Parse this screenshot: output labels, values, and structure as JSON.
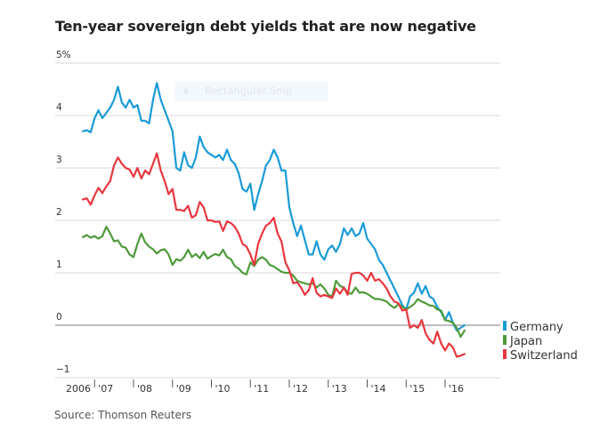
{
  "chart_data": {
    "type": "line",
    "title": "Ten-year sovereign debt yields that are now negative",
    "source": "Source: Thomson Reuters",
    "xlabel": "",
    "ylabel": "",
    "ylim": [
      -1,
      5
    ],
    "xlim": [
      2006.0,
      2016.65
    ],
    "grid": true,
    "legend_position": "right-end",
    "y_ticks": [
      {
        "value": 5,
        "label": "5%"
      },
      {
        "value": 4,
        "label": "4"
      },
      {
        "value": 3,
        "label": "3"
      },
      {
        "value": 2,
        "label": "2"
      },
      {
        "value": 1,
        "label": "1"
      },
      {
        "value": 0,
        "label": "0"
      },
      {
        "value": -1,
        "label": "−1"
      }
    ],
    "x_ticks": [
      {
        "value": 2006.3,
        "label": "2006",
        "tick": false
      },
      {
        "value": 2007.0,
        "label": "'07",
        "tick": true
      },
      {
        "value": 2008.0,
        "label": "'08",
        "tick": true
      },
      {
        "value": 2009.0,
        "label": "'09",
        "tick": true
      },
      {
        "value": 2010.0,
        "label": "'10",
        "tick": true
      },
      {
        "value": 2011.0,
        "label": "'11",
        "tick": true
      },
      {
        "value": 2012.0,
        "label": "'12",
        "tick": true
      },
      {
        "value": 2013.0,
        "label": "'13",
        "tick": true
      },
      {
        "value": 2014.0,
        "label": "'14",
        "tick": true
      },
      {
        "value": 2015.0,
        "label": "'15",
        "tick": true
      },
      {
        "value": 2016.0,
        "label": "'16",
        "tick": true
      }
    ],
    "series": [
      {
        "name": "Germany",
        "color": "#1a9bd7",
        "x": [
          2006.7,
          2006.8,
          2006.9,
          2007.0,
          2007.1,
          2007.2,
          2007.3,
          2007.4,
          2007.5,
          2007.6,
          2007.7,
          2007.8,
          2007.9,
          2008.0,
          2008.1,
          2008.2,
          2008.3,
          2008.4,
          2008.5,
          2008.6,
          2008.7,
          2008.8,
          2008.9,
          2009.0,
          2009.1,
          2009.2,
          2009.3,
          2009.4,
          2009.5,
          2009.6,
          2009.7,
          2009.8,
          2009.9,
          2010.0,
          2010.1,
          2010.2,
          2010.3,
          2010.4,
          2010.5,
          2010.6,
          2010.7,
          2010.8,
          2010.9,
          2011.0,
          2011.1,
          2011.2,
          2011.3,
          2011.4,
          2011.5,
          2011.6,
          2011.7,
          2011.8,
          2011.9,
          2012.0,
          2012.1,
          2012.2,
          2012.3,
          2012.4,
          2012.5,
          2012.6,
          2012.7,
          2012.8,
          2012.9,
          2013.0,
          2013.1,
          2013.2,
          2013.3,
          2013.4,
          2013.5,
          2013.6,
          2013.7,
          2013.8,
          2013.9,
          2014.0,
          2014.1,
          2014.2,
          2014.3,
          2014.4,
          2014.5,
          2014.6,
          2014.7,
          2014.8,
          2014.9,
          2015.0,
          2015.1,
          2015.2,
          2015.3,
          2015.4,
          2015.5,
          2015.6,
          2015.7,
          2015.8,
          2015.9,
          2016.0,
          2016.1,
          2016.2,
          2016.3,
          2016.4,
          2016.5
        ],
        "values": [
          3.7,
          3.72,
          3.68,
          3.95,
          4.1,
          3.95,
          4.05,
          4.15,
          4.3,
          4.55,
          4.25,
          4.15,
          4.3,
          4.15,
          4.2,
          3.9,
          3.9,
          3.85,
          4.3,
          4.62,
          4.3,
          4.1,
          3.9,
          3.7,
          3.0,
          2.95,
          3.3,
          3.05,
          3.0,
          3.2,
          3.6,
          3.4,
          3.3,
          3.25,
          3.2,
          3.25,
          3.15,
          3.35,
          3.15,
          3.08,
          2.9,
          2.6,
          2.55,
          2.7,
          2.2,
          2.5,
          2.75,
          3.05,
          3.15,
          3.35,
          3.2,
          2.95,
          2.95,
          2.25,
          1.95,
          1.7,
          1.9,
          1.62,
          1.35,
          1.35,
          1.6,
          1.35,
          1.25,
          1.45,
          1.52,
          1.4,
          1.55,
          1.85,
          1.72,
          1.85,
          1.7,
          1.75,
          1.95,
          1.65,
          1.55,
          1.45,
          1.25,
          1.15,
          1.0,
          0.85,
          0.7,
          0.55,
          0.38,
          0.3,
          0.55,
          0.62,
          0.8,
          0.6,
          0.75,
          0.55,
          0.5,
          0.35,
          0.25,
          0.1,
          0.25,
          0.05,
          -0.1,
          -0.05,
          0.0
        ]
      },
      {
        "name": "Japan",
        "color": "#4e9a3a",
        "x": [
          2006.7,
          2006.8,
          2006.9,
          2007.0,
          2007.1,
          2007.2,
          2007.3,
          2007.4,
          2007.5,
          2007.6,
          2007.7,
          2007.8,
          2007.9,
          2008.0,
          2008.1,
          2008.2,
          2008.3,
          2008.4,
          2008.5,
          2008.6,
          2008.7,
          2008.8,
          2008.9,
          2009.0,
          2009.1,
          2009.2,
          2009.3,
          2009.4,
          2009.5,
          2009.6,
          2009.7,
          2009.8,
          2009.9,
          2010.0,
          2010.1,
          2010.2,
          2010.3,
          2010.4,
          2010.5,
          2010.6,
          2010.7,
          2010.8,
          2010.9,
          2011.0,
          2011.1,
          2011.2,
          2011.3,
          2011.4,
          2011.5,
          2011.6,
          2011.7,
          2011.8,
          2011.9,
          2012.0,
          2012.1,
          2012.2,
          2012.3,
          2012.4,
          2012.5,
          2012.6,
          2012.7,
          2012.8,
          2012.9,
          2013.0,
          2013.1,
          2013.2,
          2013.3,
          2013.4,
          2013.5,
          2013.6,
          2013.7,
          2013.8,
          2013.9,
          2014.0,
          2014.1,
          2014.2,
          2014.3,
          2014.4,
          2014.5,
          2014.6,
          2014.7,
          2014.8,
          2014.9,
          2015.0,
          2015.1,
          2015.2,
          2015.3,
          2015.4,
          2015.5,
          2015.6,
          2015.7,
          2015.8,
          2015.9,
          2016.0,
          2016.1,
          2016.2,
          2016.3,
          2016.4,
          2016.5
        ],
        "values": [
          1.68,
          1.72,
          1.67,
          1.7,
          1.65,
          1.7,
          1.88,
          1.75,
          1.6,
          1.62,
          1.5,
          1.48,
          1.35,
          1.3,
          1.55,
          1.75,
          1.58,
          1.5,
          1.45,
          1.37,
          1.43,
          1.45,
          1.35,
          1.15,
          1.26,
          1.23,
          1.3,
          1.44,
          1.3,
          1.36,
          1.28,
          1.4,
          1.27,
          1.32,
          1.36,
          1.33,
          1.44,
          1.3,
          1.26,
          1.13,
          1.08,
          1.0,
          0.97,
          1.2,
          1.13,
          1.25,
          1.3,
          1.25,
          1.15,
          1.12,
          1.07,
          1.02,
          1.0,
          1.0,
          0.95,
          0.85,
          0.82,
          0.8,
          0.78,
          0.8,
          0.72,
          0.78,
          0.7,
          0.58,
          0.55,
          0.85,
          0.75,
          0.72,
          0.62,
          0.6,
          0.72,
          0.62,
          0.63,
          0.6,
          0.55,
          0.5,
          0.5,
          0.48,
          0.45,
          0.38,
          0.33,
          0.4,
          0.35,
          0.3,
          0.35,
          0.4,
          0.5,
          0.45,
          0.42,
          0.38,
          0.37,
          0.3,
          0.28,
          0.1,
          0.08,
          0.05,
          -0.05,
          -0.22,
          -0.1
        ]
      },
      {
        "name": "Switzerland",
        "color": "#e8373f",
        "x": [
          2006.7,
          2006.8,
          2006.9,
          2007.0,
          2007.1,
          2007.2,
          2007.3,
          2007.4,
          2007.5,
          2007.6,
          2007.7,
          2007.8,
          2007.9,
          2008.0,
          2008.1,
          2008.2,
          2008.3,
          2008.4,
          2008.5,
          2008.6,
          2008.7,
          2008.8,
          2008.9,
          2009.0,
          2009.1,
          2009.2,
          2009.3,
          2009.4,
          2009.5,
          2009.6,
          2009.7,
          2009.8,
          2009.9,
          2010.0,
          2010.1,
          2010.2,
          2010.3,
          2010.4,
          2010.5,
          2010.6,
          2010.7,
          2010.8,
          2010.9,
          2011.0,
          2011.1,
          2011.2,
          2011.3,
          2011.4,
          2011.5,
          2011.6,
          2011.7,
          2011.8,
          2011.9,
          2012.0,
          2012.1,
          2012.2,
          2012.3,
          2012.4,
          2012.5,
          2012.6,
          2012.7,
          2012.8,
          2012.9,
          2013.0,
          2013.1,
          2013.2,
          2013.3,
          2013.4,
          2013.5,
          2013.6,
          2013.7,
          2013.8,
          2013.9,
          2014.0,
          2014.1,
          2014.2,
          2014.3,
          2014.4,
          2014.5,
          2014.6,
          2014.7,
          2014.8,
          2014.9,
          2015.0,
          2015.1,
          2015.2,
          2015.3,
          2015.4,
          2015.5,
          2015.6,
          2015.7,
          2015.8,
          2015.9,
          2016.0,
          2016.1,
          2016.2,
          2016.3,
          2016.4,
          2016.5
        ],
        "values": [
          2.4,
          2.42,
          2.3,
          2.48,
          2.62,
          2.52,
          2.65,
          2.75,
          3.05,
          3.2,
          3.08,
          3.0,
          2.97,
          2.83,
          3.0,
          2.8,
          2.95,
          2.88,
          3.08,
          3.28,
          2.95,
          2.75,
          2.5,
          2.6,
          2.2,
          2.2,
          2.18,
          2.28,
          2.05,
          2.1,
          2.35,
          2.25,
          2.0,
          2.0,
          1.97,
          1.98,
          1.8,
          1.98,
          1.95,
          1.88,
          1.75,
          1.55,
          1.5,
          1.35,
          1.15,
          1.55,
          1.75,
          1.9,
          1.95,
          2.05,
          1.75,
          1.6,
          1.2,
          1.05,
          0.8,
          0.82,
          0.72,
          0.58,
          0.67,
          0.9,
          0.62,
          0.55,
          0.58,
          0.55,
          0.52,
          0.7,
          0.6,
          0.72,
          0.58,
          0.98,
          1.0,
          1.0,
          0.95,
          0.85,
          1.0,
          0.85,
          0.88,
          0.8,
          0.7,
          0.55,
          0.45,
          0.42,
          0.28,
          0.3,
          -0.05,
          0.0,
          -0.05,
          0.1,
          -0.15,
          -0.28,
          -0.35,
          -0.12,
          -0.35,
          -0.48,
          -0.35,
          -0.42,
          -0.6,
          -0.58,
          -0.55
        ]
      }
    ]
  },
  "overlay": {
    "snip_label": "Rectangular Snip"
  }
}
